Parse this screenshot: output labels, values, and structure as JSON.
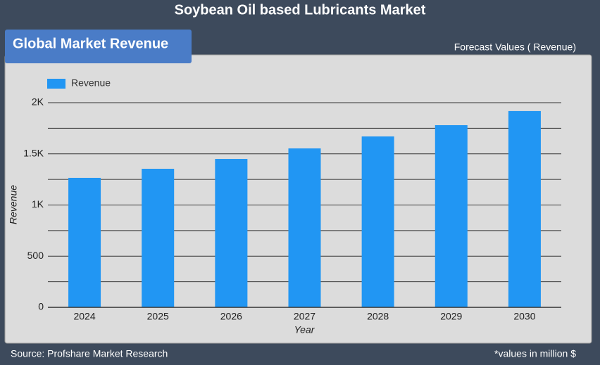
{
  "title": "Soybean Oil based Lubricants Market",
  "badge": "Global Market Revenue",
  "forecast_note": "Forecast Values ( Revenue)",
  "footer": {
    "source": "Source: Profshare Market Research",
    "note": "*values in million $"
  },
  "chart_data": {
    "type": "bar",
    "categories": [
      "2024",
      "2025",
      "2026",
      "2027",
      "2028",
      "2029",
      "2030"
    ],
    "series": [
      {
        "name": "Revenue",
        "color": "#2196f3",
        "values": [
          1265,
          1354,
          1450,
          1553,
          1670,
          1780,
          1918
        ]
      }
    ],
    "x_label": "Year",
    "y_label": "Revenue",
    "ylim": [
      0,
      2000
    ],
    "yticks": [
      0,
      500,
      {
        "value": 1000,
        "label": "1K"
      },
      {
        "value": 1500,
        "label": "1.5K"
      },
      {
        "value": 2000,
        "label": "2K"
      }
    ],
    "minor_yticks": [
      250,
      750,
      1250,
      1750
    ],
    "grid": true,
    "legend": "top-left"
  }
}
